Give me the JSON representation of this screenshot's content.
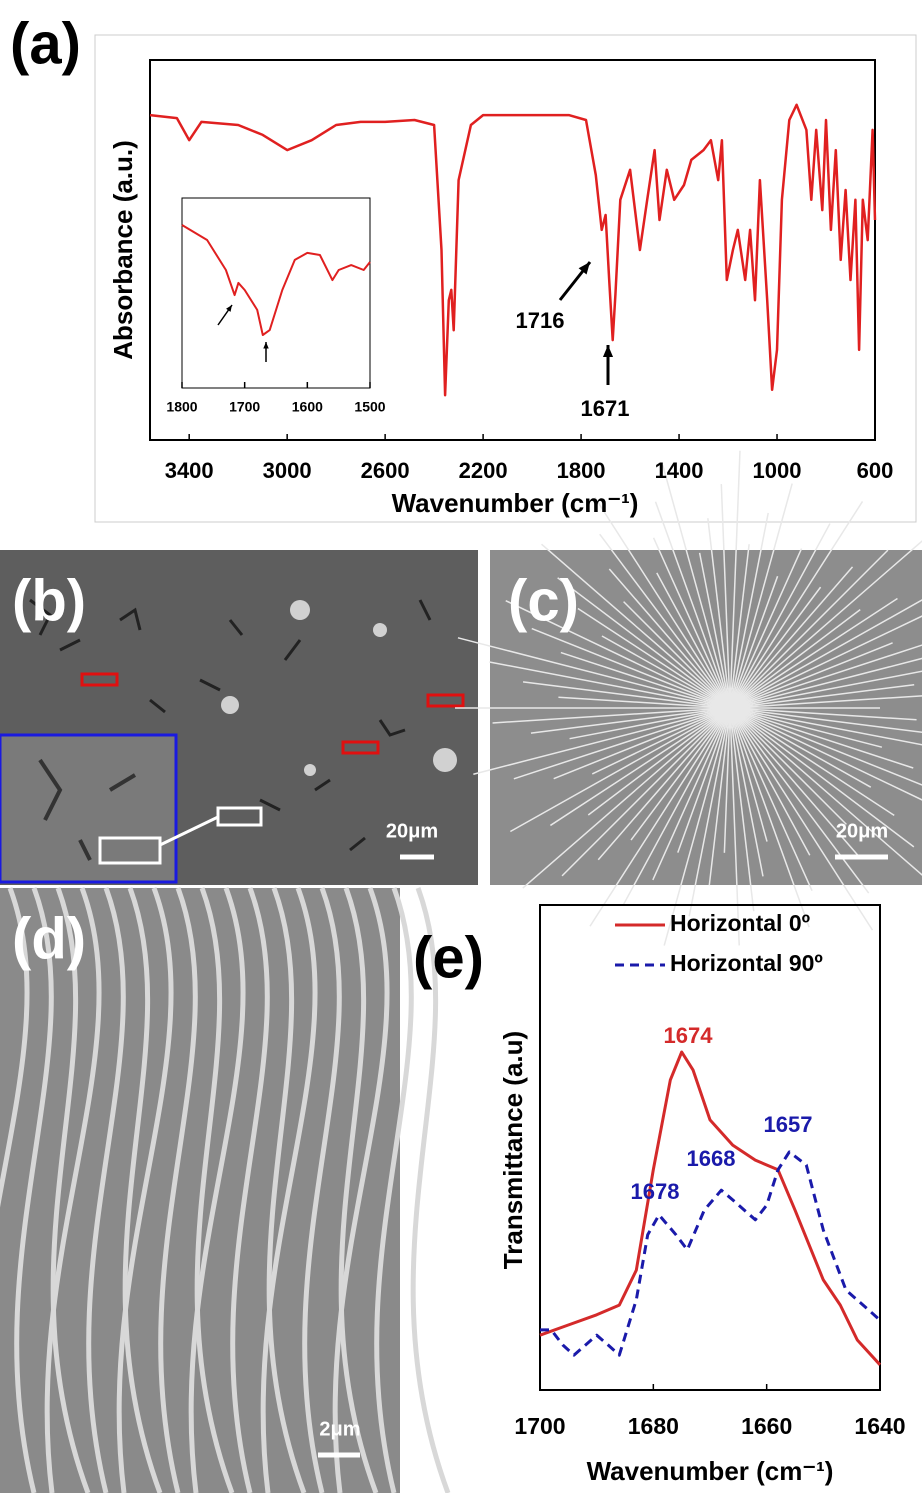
{
  "chart_data": [
    {
      "type": "line",
      "label": "(a)",
      "x_label": "Wavenumber (cm⁻¹)",
      "y_label": "Absorbance (a.u.)",
      "color": "#e02020",
      "xlim": [
        3560,
        600
      ],
      "ylim": [
        0,
        100
      ],
      "xticks": [
        3400,
        3000,
        2600,
        2200,
        1800,
        1400,
        1000,
        600
      ],
      "x": [
        3560,
        3450,
        3400,
        3350,
        3200,
        3100,
        3000,
        2900,
        2800,
        2700,
        2600,
        2480,
        2400,
        2370,
        2355,
        2340,
        2330,
        2320,
        2300,
        2250,
        2200,
        2000,
        1850,
        1780,
        1740,
        1716,
        1700,
        1685,
        1671,
        1660,
        1640,
        1600,
        1560,
        1530,
        1500,
        1480,
        1450,
        1420,
        1380,
        1350,
        1300,
        1270,
        1240,
        1225,
        1205,
        1180,
        1160,
        1130,
        1110,
        1090,
        1070,
        1040,
        1020,
        1000,
        980,
        950,
        920,
        880,
        860,
        840,
        815,
        800,
        780,
        760,
        740,
        720,
        700,
        680,
        665,
        650,
        630,
        610,
        600
      ],
      "values": [
        85.5,
        84.7,
        78.9,
        83.7,
        82.9,
        80.3,
        76.3,
        78.9,
        82.9,
        83.7,
        83.7,
        84.2,
        82.9,
        50,
        11.8,
        36.8,
        39.5,
        28.9,
        68.4,
        82.9,
        85.5,
        85.5,
        85.5,
        84.2,
        69.7,
        55.3,
        59.2,
        42.1,
        26.3,
        38.2,
        63.2,
        71.1,
        50,
        63.2,
        76.3,
        57.9,
        71.1,
        63.2,
        67.1,
        73.7,
        76.3,
        78.9,
        68.4,
        78.9,
        42.1,
        50,
        55.3,
        42.1,
        55.3,
        36.8,
        68.4,
        36.8,
        13.2,
        23.7,
        63.2,
        84.2,
        88.2,
        81.6,
        63.2,
        81.6,
        60.5,
        84.2,
        55.3,
        76.3,
        47.4,
        65.8,
        42.1,
        63.2,
        23.7,
        63.2,
        52.6,
        81.6,
        57.9
      ],
      "annotations": [
        {
          "text": "1716",
          "color": "#000000"
        },
        {
          "text": "1671",
          "color": "#000000"
        }
      ]
    },
    {
      "type": "line",
      "color": "#e02020",
      "xlim": [
        1800,
        1500
      ],
      "ylim": [
        0,
        100
      ],
      "xticks": [
        1800,
        1700,
        1600,
        1500
      ],
      "x": [
        1800,
        1760,
        1730,
        1716,
        1710,
        1700,
        1680,
        1671,
        1660,
        1640,
        1620,
        1600,
        1580,
        1560,
        1550,
        1530,
        1510,
        1500
      ],
      "values": [
        85.8,
        77.9,
        62.1,
        48.9,
        55.3,
        51.6,
        41.1,
        27.9,
        30.5,
        51.6,
        67.4,
        71.1,
        70,
        56.8,
        62.1,
        64.7,
        62.1,
        66.3
      ]
    },
    {
      "type": "line",
      "label": "(e)",
      "x_label": "Wavenumber (cm⁻¹)",
      "y_label": "Transmittance (a.u)",
      "xlim": [
        1700,
        1640
      ],
      "ylim": [
        0,
        100
      ],
      "xticks": [
        1700,
        1680,
        1660,
        1640
      ],
      "series": [
        {
          "name": "Horizontal  0º",
          "color": "#d42a2a",
          "dash": false,
          "x": [
            1700,
            1695,
            1690,
            1686,
            1683,
            1680,
            1677,
            1675,
            1673,
            1670,
            1666,
            1662,
            1660,
            1658,
            1655,
            1650,
            1647,
            1644,
            1640
          ],
          "values": [
            11.3,
            13.4,
            15.5,
            17.5,
            24.7,
            45.4,
            63.9,
            69.7,
            66,
            55.7,
            50.5,
            47.4,
            46.4,
            45.4,
            37.1,
            22.7,
            17.5,
            10.3,
            5.2
          ]
        },
        {
          "name": "Horizontal  90º",
          "color": "#1a1aaa",
          "dash": true,
          "x": [
            1700,
            1698,
            1696,
            1694,
            1690,
            1688,
            1686,
            1683,
            1681,
            1679,
            1676,
            1674,
            1671,
            1668,
            1666,
            1662,
            1660,
            1658,
            1656,
            1653,
            1650,
            1646,
            1642,
            1640
          ],
          "values": [
            12.4,
            12.4,
            9.3,
            7.2,
            11.3,
            9.3,
            7.2,
            18.6,
            32,
            36.1,
            32,
            28.9,
            37.1,
            41.2,
            39.2,
            35.1,
            38.1,
            45.4,
            49.1,
            46.4,
            33,
            20.6,
            16.5,
            14.4
          ]
        }
      ],
      "annotations": [
        {
          "text": "1674",
          "color": "#d42a2a"
        },
        {
          "text": "1678",
          "color": "#1a1aaa"
        },
        {
          "text": "1668",
          "color": "#1a1aaa"
        },
        {
          "text": "1657",
          "color": "#1a1aaa"
        }
      ]
    }
  ],
  "images": [
    {
      "label": "(b)",
      "scale_bar": "20μm"
    },
    {
      "label": "(c)",
      "scale_bar": "20μm"
    },
    {
      "label": "(d)",
      "scale_bar": "2μm"
    }
  ]
}
